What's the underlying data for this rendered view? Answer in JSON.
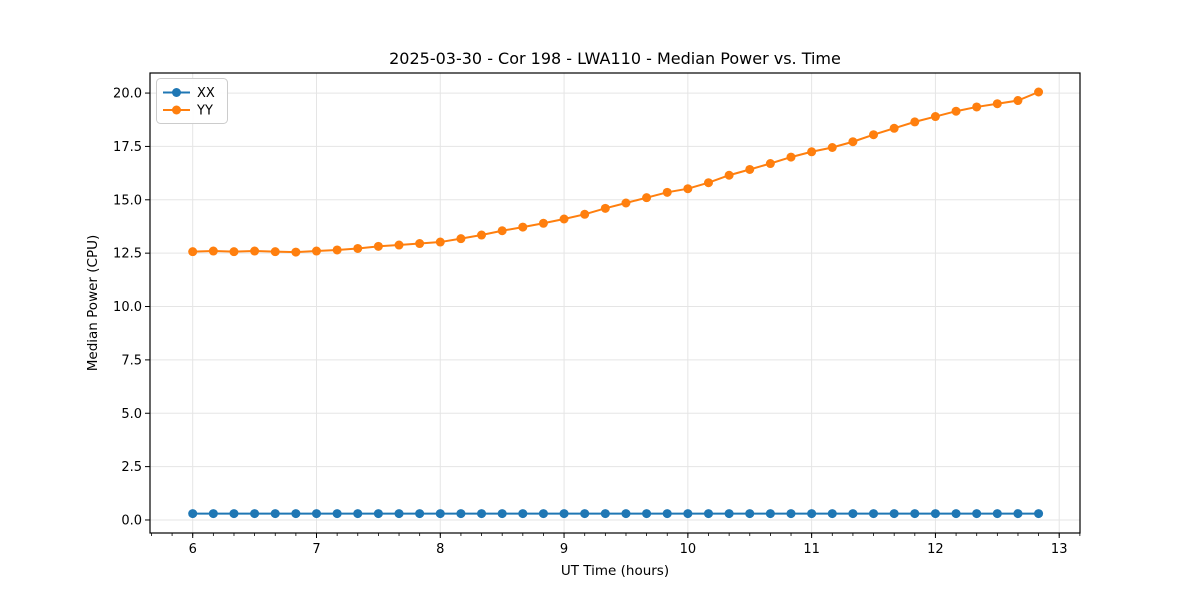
{
  "chart_data": {
    "type": "line",
    "title": "2025-03-30 - Cor 198 - LWA110 - Median Power vs. Time",
    "xlabel": "UT Time (hours)",
    "ylabel": "Median Power (CPU)",
    "x": [
      6.0,
      6.1667,
      6.3333,
      6.5,
      6.6667,
      6.8333,
      7.0,
      7.1667,
      7.3333,
      7.5,
      7.6667,
      7.8333,
      8.0,
      8.1667,
      8.3333,
      8.5,
      8.6667,
      8.8333,
      9.0,
      9.1667,
      9.3333,
      9.5,
      9.6667,
      9.8333,
      10.0,
      10.1667,
      10.3333,
      10.5,
      10.6667,
      10.8333,
      11.0,
      11.1667,
      11.3333,
      11.5,
      11.6667,
      11.8333,
      12.0,
      12.1667,
      12.3333,
      12.5,
      12.6667,
      12.8333
    ],
    "series": [
      {
        "name": "XX",
        "color": "#1f77b4",
        "values": [
          0.3,
          0.3,
          0.3,
          0.3,
          0.3,
          0.3,
          0.3,
          0.3,
          0.3,
          0.3,
          0.3,
          0.3,
          0.3,
          0.3,
          0.3,
          0.3,
          0.3,
          0.3,
          0.3,
          0.3,
          0.3,
          0.3,
          0.3,
          0.3,
          0.3,
          0.3,
          0.3,
          0.3,
          0.3,
          0.3,
          0.3,
          0.3,
          0.3,
          0.3,
          0.3,
          0.3,
          0.3,
          0.3,
          0.3,
          0.3,
          0.3,
          0.3
        ]
      },
      {
        "name": "YY",
        "color": "#ff7f0e",
        "values": [
          12.57,
          12.6,
          12.57,
          12.6,
          12.57,
          12.55,
          12.6,
          12.65,
          12.72,
          12.82,
          12.88,
          12.95,
          13.02,
          13.18,
          13.35,
          13.55,
          13.72,
          13.9,
          14.1,
          14.32,
          14.6,
          14.85,
          15.1,
          15.35,
          15.52,
          15.8,
          16.15,
          16.42,
          16.7,
          17.0,
          17.25,
          17.45,
          17.72,
          18.05,
          18.35,
          18.65,
          18.9,
          19.15,
          19.35,
          19.5,
          19.65,
          20.05
        ]
      }
    ],
    "xlim": [
      5.655,
      13.168
    ],
    "ylim": [
      -0.61,
      20.94
    ],
    "x_ticks": [
      6,
      7,
      8,
      9,
      10,
      11,
      12,
      13
    ],
    "x_tick_labels": [
      "6",
      "7",
      "8",
      "9",
      "10",
      "11",
      "12",
      "13"
    ],
    "x_minor_tick_step_hours": 0.16667,
    "y_ticks": [
      0.0,
      2.5,
      5.0,
      7.5,
      10.0,
      12.5,
      15.0,
      17.5,
      20.0
    ],
    "y_tick_labels": [
      "0.0",
      "2.5",
      "5.0",
      "7.5",
      "10.0",
      "12.5",
      "15.0",
      "17.5",
      "20.0"
    ],
    "grid": true,
    "legend": {
      "position": "upper left",
      "entries": [
        "XX",
        "YY"
      ]
    },
    "colors": {
      "grid": "#e5e5e5",
      "spine": "#000000",
      "background": "#ffffff",
      "legend_border": "#cccccc"
    }
  }
}
